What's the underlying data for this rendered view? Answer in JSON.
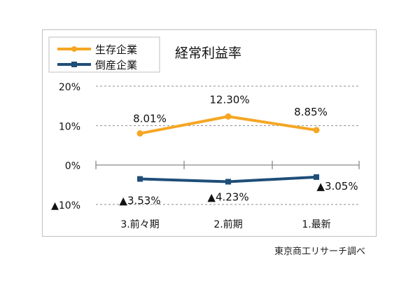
{
  "chart_data": {
    "type": "line",
    "title": "経常利益率",
    "categories": [
      "3.前々期",
      "2.前期",
      "1.最新"
    ],
    "series": [
      {
        "name": "生存企業",
        "values": [
          8.01,
          12.3,
          8.85
        ],
        "labels": [
          "8.01%",
          "12.30%",
          "8.85%"
        ],
        "color": "#f5a623"
      },
      {
        "name": "倒産企業",
        "values": [
          -3.53,
          -4.23,
          -3.05
        ],
        "labels": [
          "▲3.53%",
          "▲4.23%",
          "▲3.05%"
        ],
        "color": "#1f4e79"
      }
    ],
    "y_ticks": [
      {
        "value": 20,
        "label": "20%"
      },
      {
        "value": 10,
        "label": "10%"
      },
      {
        "value": 0,
        "label": "0%"
      },
      {
        "value": -10,
        "label": "▲10%"
      }
    ],
    "ylim": [
      -10,
      20
    ],
    "grid": "dashed",
    "legend": "top-left"
  },
  "source": "東京商工リサーチ調べ"
}
